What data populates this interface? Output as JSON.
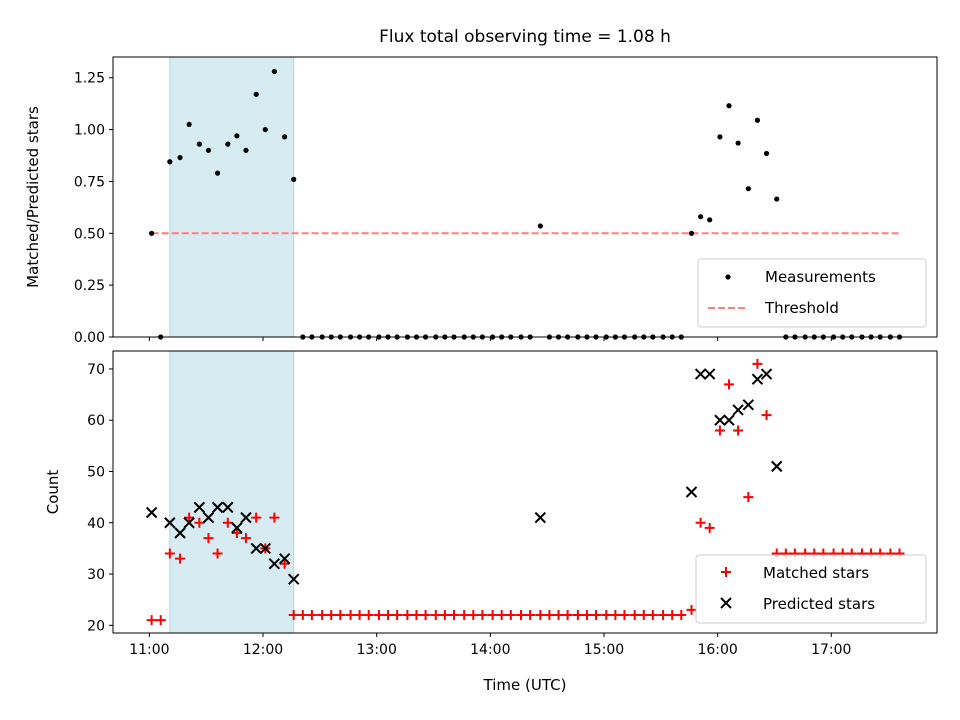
{
  "title": "Flux total observing time = 1.08 h",
  "x_axis_label": "Time (UTC)",
  "top_y_label": "Matched/Predicted stars",
  "bottom_y_label": "Count",
  "legend_top": {
    "measurements": "Measurements",
    "threshold": "Threshold"
  },
  "legend_bottom": {
    "matched": "Matched stars",
    "predicted": "Predicted stars"
  },
  "colors": {
    "measurement": "#000000",
    "threshold": "#ff7f7f",
    "matched": "#ff0000",
    "predicted": "#000000",
    "span": "#add8e6"
  },
  "chart_data": [
    {
      "type": "scatter",
      "x_unit": "hours UTC",
      "xlim": [
        10.68,
        17.93
      ],
      "x_ticks": [
        11,
        12,
        13,
        14,
        15,
        16,
        17
      ],
      "x_tick_labels": [
        "11:00",
        "12:00",
        "13:00",
        "14:00",
        "15:00",
        "16:00",
        "17:00"
      ],
      "ylabel": "Matched/Predicted stars",
      "ylim": [
        0,
        1.35
      ],
      "y_ticks": [
        0.0,
        0.25,
        0.5,
        0.75,
        1.0,
        1.25
      ],
      "y_tick_labels": [
        "0.00",
        "0.25",
        "0.50",
        "0.75",
        "1.00",
        "1.25"
      ],
      "highlight_span": [
        11.18,
        12.27
      ],
      "threshold": {
        "value": 0.5,
        "x_range": [
          11.02,
          17.62
        ]
      },
      "legend": "lower right",
      "series": [
        {
          "name": "Measurements",
          "points": [
            [
              11.02,
              0.5
            ],
            [
              11.1,
              0.0
            ],
            [
              11.18,
              0.845
            ],
            [
              11.27,
              0.865
            ],
            [
              11.35,
              1.025
            ],
            [
              11.44,
              0.93
            ],
            [
              11.52,
              0.9
            ],
            [
              11.6,
              0.79
            ],
            [
              11.69,
              0.93
            ],
            [
              11.77,
              0.97
            ],
            [
              11.85,
              0.9
            ],
            [
              11.94,
              1.17
            ],
            [
              12.02,
              1.0
            ],
            [
              12.1,
              1.28
            ],
            [
              12.19,
              0.965
            ],
            [
              12.27,
              0.76
            ],
            [
              12.35,
              0
            ],
            [
              12.43,
              0
            ],
            [
              12.52,
              0
            ],
            [
              12.6,
              0
            ],
            [
              12.68,
              0
            ],
            [
              12.77,
              0
            ],
            [
              12.85,
              0
            ],
            [
              12.93,
              0
            ],
            [
              13.02,
              0
            ],
            [
              13.1,
              0
            ],
            [
              13.18,
              0
            ],
            [
              13.27,
              0
            ],
            [
              13.35,
              0
            ],
            [
              13.43,
              0
            ],
            [
              13.52,
              0
            ],
            [
              13.6,
              0
            ],
            [
              13.68,
              0
            ],
            [
              13.77,
              0
            ],
            [
              13.85,
              0
            ],
            [
              13.93,
              0
            ],
            [
              14.02,
              0
            ],
            [
              14.1,
              0
            ],
            [
              14.18,
              0
            ],
            [
              14.27,
              0
            ],
            [
              14.35,
              0
            ],
            [
              14.44,
              0.535
            ],
            [
              14.52,
              0
            ],
            [
              14.6,
              0
            ],
            [
              14.68,
              0
            ],
            [
              14.77,
              0
            ],
            [
              14.85,
              0
            ],
            [
              14.93,
              0
            ],
            [
              15.02,
              0
            ],
            [
              15.1,
              0
            ],
            [
              15.18,
              0
            ],
            [
              15.27,
              0
            ],
            [
              15.35,
              0
            ],
            [
              15.43,
              0
            ],
            [
              15.52,
              0
            ],
            [
              15.6,
              0
            ],
            [
              15.68,
              0
            ],
            [
              15.77,
              0.5
            ],
            [
              15.85,
              0.58
            ],
            [
              15.93,
              0.565
            ],
            [
              16.02,
              0.965
            ],
            [
              16.1,
              1.115
            ],
            [
              16.18,
              0.935
            ],
            [
              16.27,
              0.715
            ],
            [
              16.35,
              1.045
            ],
            [
              16.43,
              0.885
            ],
            [
              16.52,
              0.665
            ],
            [
              16.6,
              0
            ],
            [
              16.68,
              0
            ],
            [
              16.77,
              0
            ],
            [
              16.85,
              0
            ],
            [
              16.93,
              0
            ],
            [
              17.02,
              0
            ],
            [
              17.1,
              0
            ],
            [
              17.18,
              0
            ],
            [
              17.27,
              0
            ],
            [
              17.35,
              0
            ],
            [
              17.43,
              0
            ],
            [
              17.52,
              0
            ],
            [
              17.6,
              0
            ]
          ]
        }
      ]
    },
    {
      "type": "scatter",
      "x_unit": "hours UTC",
      "xlim": [
        10.68,
        17.93
      ],
      "x_ticks": [
        11,
        12,
        13,
        14,
        15,
        16,
        17
      ],
      "x_tick_labels": [
        "11:00",
        "12:00",
        "13:00",
        "14:00",
        "15:00",
        "16:00",
        "17:00"
      ],
      "xlabel": "Time (UTC)",
      "ylabel": "Count",
      "ylim": [
        18.5,
        73.5
      ],
      "y_ticks": [
        20,
        30,
        40,
        50,
        60,
        70
      ],
      "y_tick_labels": [
        "20",
        "30",
        "40",
        "50",
        "60",
        "70"
      ],
      "highlight_span": [
        11.18,
        12.27
      ],
      "legend": "lower right",
      "series": [
        {
          "name": "Matched stars",
          "marker": "+",
          "points": [
            [
              11.02,
              21
            ],
            [
              11.1,
              21
            ],
            [
              11.18,
              34
            ],
            [
              11.27,
              33
            ],
            [
              11.35,
              41
            ],
            [
              11.44,
              40
            ],
            [
              11.52,
              37
            ],
            [
              11.6,
              34
            ],
            [
              11.69,
              40
            ],
            [
              11.77,
              38
            ],
            [
              11.85,
              37
            ],
            [
              11.94,
              41
            ],
            [
              12.02,
              35
            ],
            [
              12.1,
              41
            ],
            [
              12.19,
              32
            ],
            [
              12.27,
              22
            ],
            [
              12.35,
              22
            ],
            [
              12.43,
              22
            ],
            [
              12.52,
              22
            ],
            [
              12.6,
              22
            ],
            [
              12.68,
              22
            ],
            [
              12.77,
              22
            ],
            [
              12.85,
              22
            ],
            [
              12.93,
              22
            ],
            [
              13.02,
              22
            ],
            [
              13.1,
              22
            ],
            [
              13.18,
              22
            ],
            [
              13.27,
              22
            ],
            [
              13.35,
              22
            ],
            [
              13.43,
              22
            ],
            [
              13.52,
              22
            ],
            [
              13.6,
              22
            ],
            [
              13.68,
              22
            ],
            [
              13.77,
              22
            ],
            [
              13.85,
              22
            ],
            [
              13.93,
              22
            ],
            [
              14.02,
              22
            ],
            [
              14.1,
              22
            ],
            [
              14.18,
              22
            ],
            [
              14.27,
              22
            ],
            [
              14.35,
              22
            ],
            [
              14.44,
              22
            ],
            [
              14.52,
              22
            ],
            [
              14.6,
              22
            ],
            [
              14.68,
              22
            ],
            [
              14.77,
              22
            ],
            [
              14.85,
              22
            ],
            [
              14.93,
              22
            ],
            [
              15.02,
              22
            ],
            [
              15.1,
              22
            ],
            [
              15.18,
              22
            ],
            [
              15.27,
              22
            ],
            [
              15.35,
              22
            ],
            [
              15.43,
              22
            ],
            [
              15.52,
              22
            ],
            [
              15.6,
              22
            ],
            [
              15.68,
              22
            ],
            [
              15.77,
              23
            ],
            [
              15.85,
              40
            ],
            [
              15.93,
              39
            ],
            [
              16.02,
              58
            ],
            [
              16.1,
              67
            ],
            [
              16.18,
              58
            ],
            [
              16.27,
              45
            ],
            [
              16.35,
              71
            ],
            [
              16.43,
              61
            ],
            [
              16.52,
              34
            ],
            [
              16.6,
              34
            ],
            [
              16.68,
              34
            ],
            [
              16.77,
              34
            ],
            [
              16.85,
              34
            ],
            [
              16.93,
              34
            ],
            [
              17.02,
              34
            ],
            [
              17.1,
              34
            ],
            [
              17.18,
              34
            ],
            [
              17.27,
              34
            ],
            [
              17.35,
              34
            ],
            [
              17.43,
              34
            ],
            [
              17.52,
              34
            ],
            [
              17.6,
              34
            ]
          ]
        },
        {
          "name": "Predicted stars",
          "marker": "x",
          "points": [
            [
              11.02,
              42
            ],
            [
              11.18,
              40
            ],
            [
              11.27,
              38
            ],
            [
              11.35,
              40
            ],
            [
              11.44,
              43
            ],
            [
              11.52,
              41
            ],
            [
              11.6,
              43
            ],
            [
              11.69,
              43
            ],
            [
              11.77,
              39
            ],
            [
              11.85,
              41
            ],
            [
              11.94,
              35
            ],
            [
              12.02,
              35
            ],
            [
              12.1,
              32
            ],
            [
              12.19,
              33
            ],
            [
              12.27,
              29
            ],
            [
              14.44,
              41
            ],
            [
              15.77,
              46
            ],
            [
              15.85,
              69
            ],
            [
              15.93,
              69
            ],
            [
              16.02,
              60
            ],
            [
              16.1,
              60
            ],
            [
              16.18,
              62
            ],
            [
              16.27,
              63
            ],
            [
              16.35,
              68
            ],
            [
              16.43,
              69
            ],
            [
              16.52,
              51
            ]
          ]
        }
      ]
    }
  ]
}
